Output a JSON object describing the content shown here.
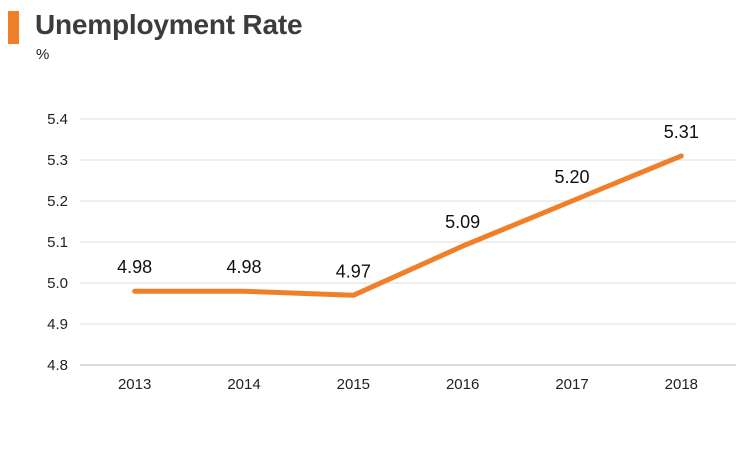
{
  "header": {
    "title": "Unemployment Rate",
    "unit": "%",
    "accent_color": "#f07f2a"
  },
  "chart_data": {
    "type": "line",
    "title": "Unemployment Rate",
    "xlabel": "",
    "ylabel": "%",
    "categories": [
      "2013",
      "2014",
      "2015",
      "2016",
      "2017",
      "2018"
    ],
    "series": [
      {
        "values": [
          4.98,
          4.98,
          4.97,
          5.09,
          5.2,
          5.31
        ],
        "color": "#f07f2a"
      }
    ],
    "data_labels": [
      "4.98",
      "4.98",
      "4.97",
      "5.09",
      "5.20",
      "5.31"
    ],
    "yticks": [
      "4.8",
      "4.9",
      "5.0",
      "5.1",
      "5.2",
      "5.3",
      "5.4"
    ],
    "ylim": [
      4.8,
      5.4
    ],
    "grid": true,
    "legend": "none"
  }
}
